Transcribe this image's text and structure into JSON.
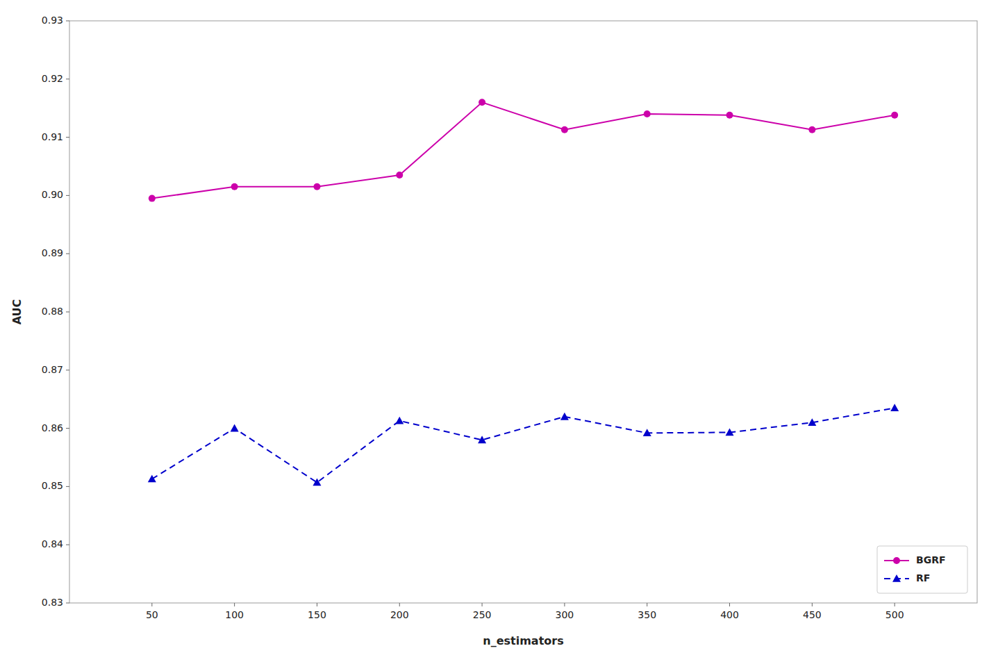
{
  "chart_data": {
    "type": "line",
    "xlabel": "n_estimators",
    "ylabel": "AUC",
    "x": [
      50,
      100,
      150,
      200,
      250,
      300,
      350,
      400,
      450,
      500
    ],
    "series": [
      {
        "name": "BGRF",
        "color": "#cc00aa",
        "marker": "circle",
        "line_style": "solid",
        "values": [
          0.8995,
          0.9015,
          0.9015,
          0.9035,
          0.916,
          0.9113,
          0.914,
          0.9138,
          0.9113,
          0.9138
        ]
      },
      {
        "name": "RF",
        "color": "#0000cc",
        "marker": "triangle",
        "line_style": "dashed",
        "values": [
          0.8513,
          0.86,
          0.8507,
          0.8613,
          0.858,
          0.862,
          0.8592,
          0.8593,
          0.861,
          0.8635
        ]
      }
    ],
    "xlim": [
      0,
      550
    ],
    "xticks": [
      50,
      100,
      150,
      200,
      250,
      300,
      350,
      400,
      450,
      500
    ],
    "ylim": [
      0.83,
      0.93
    ],
    "yticks": [
      0.83,
      0.84,
      0.85,
      0.86,
      0.87,
      0.88,
      0.89,
      {
        "value": 0.9,
        "label": "0.90"
      },
      0.91,
      0.92,
      0.93
    ],
    "grid": false,
    "legend": "lower right"
  }
}
